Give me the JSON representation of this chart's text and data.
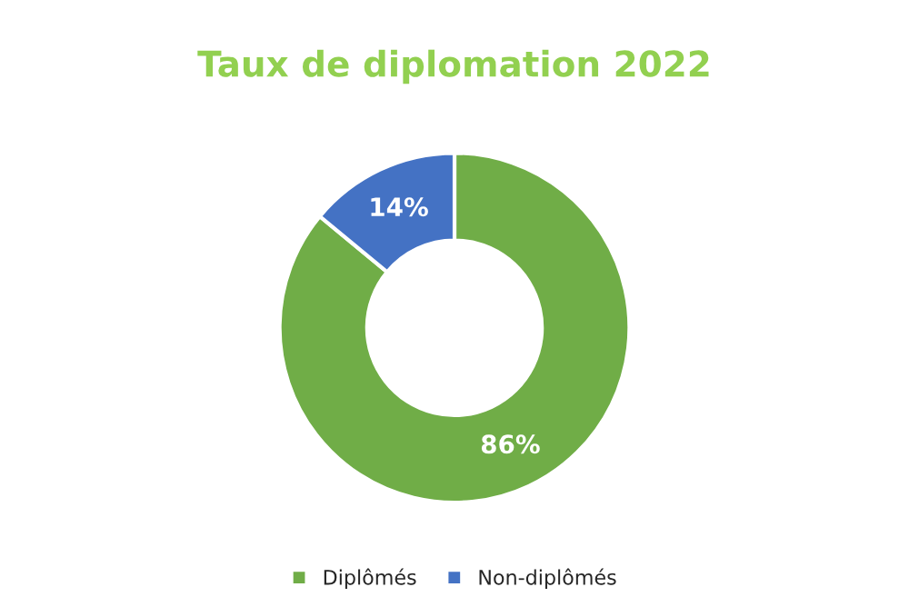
{
  "chart_data": {
    "type": "donut",
    "title": "Taux de diplomation 2022",
    "categories": [
      "Diplômés",
      "Non-diplômés"
    ],
    "values": [
      86,
      14
    ],
    "colors": [
      "#70ad47",
      "#4472c4"
    ],
    "value_labels": [
      "86%",
      "14%"
    ],
    "legend": "bottom"
  }
}
